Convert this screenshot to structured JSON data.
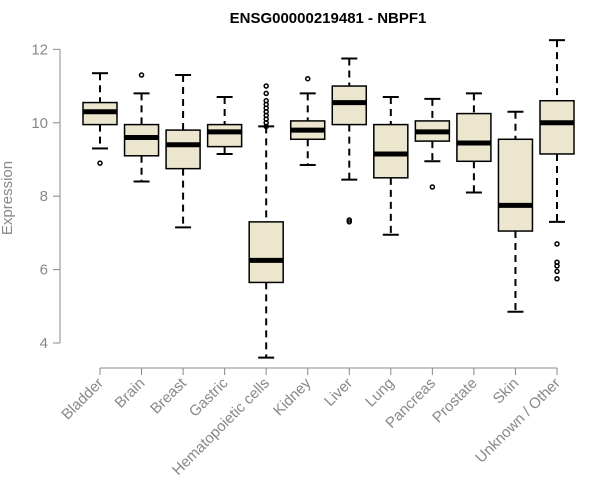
{
  "chart_data": {
    "type": "boxplot",
    "title": "ENSG00000219481 - NBPF1",
    "xlabel": "",
    "ylabel": "Expression",
    "ylim": [
      3.7,
      12.2
    ],
    "yticks": [
      4,
      6,
      8,
      10,
      12
    ],
    "grid": false,
    "box_fill": "#ede6ce",
    "median_color": "#000000",
    "axis_color": "#888888",
    "categories": [
      "Bladder",
      "Brain",
      "Breast",
      "Gastric",
      "Hematopoietic cells",
      "Kidney",
      "Liver",
      "Lung",
      "Pancreas",
      "Prostate",
      "Skin",
      "Unknown / Other"
    ],
    "boxes": [
      {
        "name": "Bladder",
        "min": 9.3,
        "q1": 9.95,
        "median": 10.3,
        "q3": 10.55,
        "max": 11.35,
        "outliers": [
          8.9
        ]
      },
      {
        "name": "Brain",
        "min": 8.4,
        "q1": 9.1,
        "median": 9.6,
        "q3": 9.95,
        "max": 10.8,
        "outliers": [
          11.3
        ]
      },
      {
        "name": "Breast",
        "min": 7.15,
        "q1": 8.75,
        "median": 9.4,
        "q3": 9.8,
        "max": 11.3,
        "outliers": []
      },
      {
        "name": "Gastric",
        "min": 9.15,
        "q1": 9.35,
        "median": 9.75,
        "q3": 9.95,
        "max": 10.7,
        "outliers": []
      },
      {
        "name": "Hematopoietic cells",
        "min": 3.6,
        "q1": 5.65,
        "median": 6.25,
        "q3": 7.3,
        "max": 9.9,
        "outliers": [
          9.9,
          10.0,
          10.1,
          10.2,
          10.3,
          10.4,
          10.5,
          10.6,
          10.8,
          11.0
        ]
      },
      {
        "name": "Kidney",
        "min": 8.85,
        "q1": 9.55,
        "median": 9.8,
        "q3": 10.05,
        "max": 10.8,
        "outliers": [
          11.2
        ]
      },
      {
        "name": "Liver",
        "min": 8.45,
        "q1": 9.95,
        "median": 10.55,
        "q3": 11.0,
        "max": 11.75,
        "outliers": [
          7.3,
          7.35
        ]
      },
      {
        "name": "Lung",
        "min": 6.95,
        "q1": 8.5,
        "median": 9.15,
        "q3": 9.95,
        "max": 10.7,
        "outliers": []
      },
      {
        "name": "Pancreas",
        "min": 8.95,
        "q1": 9.5,
        "median": 9.75,
        "q3": 10.05,
        "max": 10.65,
        "outliers": [
          8.25
        ]
      },
      {
        "name": "Prostate",
        "min": 8.1,
        "q1": 8.95,
        "median": 9.45,
        "q3": 10.25,
        "max": 10.8,
        "outliers": []
      },
      {
        "name": "Skin",
        "min": 4.85,
        "q1": 7.05,
        "median": 7.75,
        "q3": 9.55,
        "max": 10.3,
        "outliers": []
      },
      {
        "name": "Unknown / Other",
        "min": 7.3,
        "q1": 9.15,
        "median": 10.0,
        "q3": 10.6,
        "max": 12.25,
        "outliers": [
          6.7,
          6.2,
          6.1,
          5.95,
          5.75
        ]
      }
    ]
  }
}
